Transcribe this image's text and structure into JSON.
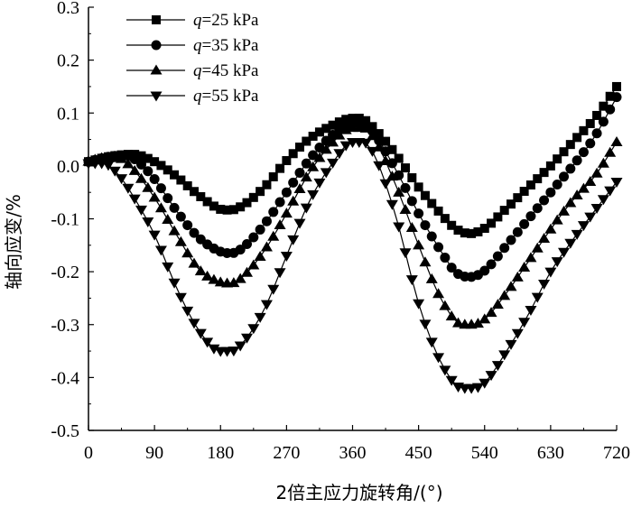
{
  "chart_data": {
    "type": "line",
    "title": "",
    "xlabel": "2倍主应力旋转角/(°)",
    "ylabel": "轴向应变/%",
    "xlim": [
      0,
      720
    ],
    "ylim": [
      -0.5,
      0.3
    ],
    "xticks": [
      0,
      90,
      180,
      270,
      360,
      450,
      540,
      630,
      720
    ],
    "yticks": [
      0.3,
      0.2,
      0.1,
      0.0,
      -0.1,
      -0.2,
      -0.3,
      -0.4,
      -0.5
    ],
    "xtick_labels": [
      "0",
      "90",
      "180",
      "270",
      "360",
      "450",
      "540",
      "630",
      "720"
    ],
    "ytick_labels": [
      "0.3",
      "0.2",
      "0.1",
      "0.0",
      "-0.1",
      "-0.2",
      "-0.3",
      "-0.4",
      "-0.5"
    ],
    "grid": false,
    "legend_position": "top-left",
    "series": [
      {
        "name": "q=25 kPa",
        "legend_var": "q",
        "legend_rest": "=25 kPa",
        "marker": "square",
        "points": [
          [
            0,
            0.008
          ],
          [
            30,
            0.018
          ],
          [
            60,
            0.022
          ],
          [
            90,
            0.008
          ],
          [
            120,
            -0.02
          ],
          [
            150,
            -0.055
          ],
          [
            180,
            -0.082
          ],
          [
            195,
            -0.083
          ],
          [
            210,
            -0.075
          ],
          [
            240,
            -0.04
          ],
          [
            270,
            0.01
          ],
          [
            300,
            0.05
          ],
          [
            330,
            0.075
          ],
          [
            360,
            0.09
          ],
          [
            375,
            0.088
          ],
          [
            390,
            0.07
          ],
          [
            420,
            0.02
          ],
          [
            450,
            -0.04
          ],
          [
            480,
            -0.09
          ],
          [
            500,
            -0.118
          ],
          [
            520,
            -0.128
          ],
          [
            540,
            -0.118
          ],
          [
            570,
            -0.08
          ],
          [
            600,
            -0.04
          ],
          [
            630,
            0.0
          ],
          [
            660,
            0.045
          ],
          [
            690,
            0.09
          ],
          [
            720,
            0.15
          ]
        ]
      },
      {
        "name": "q=35 kPa",
        "legend_var": "q",
        "legend_rest": "=35 kPa",
        "marker": "circle",
        "points": [
          [
            0,
            0.008
          ],
          [
            30,
            0.018
          ],
          [
            50,
            0.02
          ],
          [
            70,
            0.005
          ],
          [
            90,
            -0.025
          ],
          [
            120,
            -0.085
          ],
          [
            150,
            -0.135
          ],
          [
            180,
            -0.162
          ],
          [
            195,
            -0.165
          ],
          [
            210,
            -0.155
          ],
          [
            240,
            -0.11
          ],
          [
            270,
            -0.05
          ],
          [
            300,
            0.01
          ],
          [
            330,
            0.055
          ],
          [
            360,
            0.08
          ],
          [
            375,
            0.08
          ],
          [
            390,
            0.06
          ],
          [
            420,
            -0.01
          ],
          [
            450,
            -0.09
          ],
          [
            480,
            -0.16
          ],
          [
            500,
            -0.2
          ],
          [
            520,
            -0.21
          ],
          [
            540,
            -0.198
          ],
          [
            570,
            -0.15
          ],
          [
            600,
            -0.1
          ],
          [
            630,
            -0.05
          ],
          [
            660,
            0.0
          ],
          [
            690,
            0.055
          ],
          [
            720,
            0.13
          ]
        ]
      },
      {
        "name": "q=45 kPa",
        "legend_var": "q",
        "legend_rest": "=45 kPa",
        "marker": "triangle-up",
        "points": [
          [
            0,
            0.008
          ],
          [
            20,
            0.015
          ],
          [
            40,
            0.015
          ],
          [
            60,
            -0.005
          ],
          [
            90,
            -0.06
          ],
          [
            120,
            -0.13
          ],
          [
            150,
            -0.195
          ],
          [
            180,
            -0.22
          ],
          [
            195,
            -0.222
          ],
          [
            210,
            -0.21
          ],
          [
            240,
            -0.16
          ],
          [
            270,
            -0.09
          ],
          [
            300,
            -0.015
          ],
          [
            330,
            0.04
          ],
          [
            360,
            0.072
          ],
          [
            375,
            0.072
          ],
          [
            390,
            0.05
          ],
          [
            420,
            -0.04
          ],
          [
            450,
            -0.15
          ],
          [
            480,
            -0.25
          ],
          [
            510,
            -0.3
          ],
          [
            525,
            -0.3
          ],
          [
            540,
            -0.29
          ],
          [
            570,
            -0.24
          ],
          [
            600,
            -0.18
          ],
          [
            630,
            -0.12
          ],
          [
            660,
            -0.065
          ],
          [
            690,
            -0.02
          ],
          [
            720,
            0.045
          ]
        ]
      },
      {
        "name": "q=55 kPa",
        "legend_var": "q",
        "legend_rest": "=55 kPa",
        "marker": "triangle-down",
        "points": [
          [
            0,
            0.005
          ],
          [
            20,
            0.005
          ],
          [
            40,
            -0.015
          ],
          [
            60,
            -0.055
          ],
          [
            90,
            -0.13
          ],
          [
            120,
            -0.23
          ],
          [
            150,
            -0.31
          ],
          [
            180,
            -0.35
          ],
          [
            195,
            -0.35
          ],
          [
            210,
            -0.335
          ],
          [
            240,
            -0.27
          ],
          [
            270,
            -0.17
          ],
          [
            300,
            -0.07
          ],
          [
            330,
            0.0
          ],
          [
            360,
            0.045
          ],
          [
            375,
            0.045
          ],
          [
            390,
            0.02
          ],
          [
            420,
            -0.1
          ],
          [
            450,
            -0.26
          ],
          [
            480,
            -0.37
          ],
          [
            510,
            -0.42
          ],
          [
            525,
            -0.42
          ],
          [
            540,
            -0.41
          ],
          [
            570,
            -0.35
          ],
          [
            600,
            -0.28
          ],
          [
            630,
            -0.2
          ],
          [
            660,
            -0.14
          ],
          [
            690,
            -0.085
          ],
          [
            720,
            -0.03
          ]
        ]
      }
    ]
  }
}
